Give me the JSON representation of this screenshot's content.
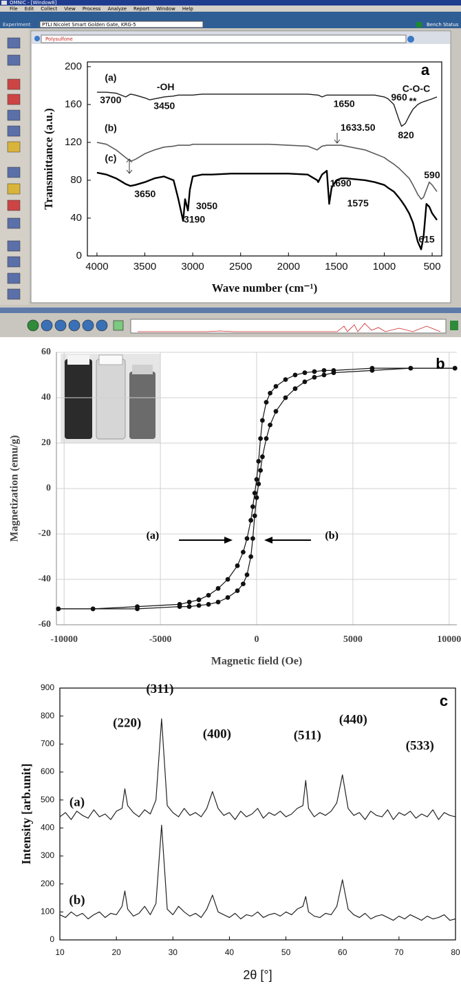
{
  "window": {
    "title": "OMNIC - [Window8]",
    "menu": [
      "File",
      "Edit",
      "Collect",
      "View",
      "Process",
      "Analyze",
      "Report",
      "Window",
      "Help"
    ],
    "experiment_label": "Experiment",
    "experiment": "PTLI Nicolet Smart Golden Gate, KRG-5",
    "bench_status": "Bench Status",
    "spectrum_title": "Polysulfone"
  },
  "chart_data": [
    {
      "type": "line",
      "label": "a",
      "xlabel": "Wave number (cm⁻¹)",
      "ylabel": "Transmittance (a.u.)",
      "xlim": [
        4100,
        400
      ],
      "ylim": [
        0,
        205
      ],
      "xticks": [
        4000,
        3500,
        3000,
        2500,
        2000,
        1500,
        1000,
        500
      ],
      "yticks": [
        0,
        40,
        80,
        120,
        160,
        200
      ],
      "grid": false,
      "x": [
        4000,
        3900,
        3800,
        3700,
        3650,
        3600,
        3500,
        3450,
        3400,
        3300,
        3200,
        3150,
        3100,
        3080,
        3050,
        3030,
        3000,
        2900,
        2800,
        2600,
        2400,
        2200,
        2000,
        1800,
        1700,
        1690,
        1650,
        1600,
        1575,
        1550,
        1500,
        1450,
        1400,
        1300,
        1200,
        1100,
        1000,
        960,
        900,
        850,
        820,
        780,
        740,
        700,
        650,
        615,
        590,
        560,
        530,
        500,
        450
      ],
      "series": [
        {
          "name": "(a)",
          "color": "#1a1a1a",
          "values": [
            173,
            173,
            172,
            168,
            171,
            170,
            167,
            165,
            166,
            168,
            169,
            170,
            170,
            170,
            170,
            170,
            170,
            171,
            171,
            171,
            171,
            171,
            171,
            171,
            170,
            170,
            168,
            170,
            170,
            170,
            170,
            170,
            170,
            170,
            170,
            170,
            168,
            166,
            160,
            145,
            137,
            140,
            148,
            155,
            160,
            162,
            163,
            164,
            165,
            166,
            168
          ]
        },
        {
          "name": "(b)",
          "color": "#5a5a5a",
          "values": [
            120,
            118,
            112,
            104,
            100,
            102,
            108,
            110,
            112,
            115,
            116,
            117,
            117,
            117,
            117,
            117,
            118,
            118,
            118,
            118,
            118,
            118,
            117,
            116,
            112,
            113,
            116,
            117,
            117,
            117,
            117,
            117,
            116,
            114,
            112,
            108,
            104,
            101,
            97,
            93,
            90,
            86,
            82,
            75,
            65,
            60,
            62,
            70,
            78,
            75,
            68
          ]
        },
        {
          "name": "(c)",
          "color": "#000000",
          "values": [
            88,
            86,
            82,
            76,
            74,
            75,
            78,
            80,
            82,
            84,
            80,
            60,
            37,
            60,
            48,
            70,
            84,
            86,
            86,
            87,
            87,
            87,
            87,
            86,
            80,
            78,
            86,
            90,
            55,
            72,
            80,
            82,
            82,
            81,
            80,
            78,
            75,
            72,
            68,
            62,
            58,
            52,
            45,
            35,
            15,
            7,
            20,
            55,
            52,
            45,
            38
          ]
        }
      ],
      "annotations": [
        {
          "text": "-OH",
          "x": 3283,
          "y": 178
        },
        {
          "text": "3700",
          "x": 3857,
          "y": 164
        },
        {
          "text": "3450",
          "x": 3297,
          "y": 158
        },
        {
          "text": "1650",
          "x": 1419,
          "y": 160
        },
        {
          "text": "960",
          "x": 845,
          "y": 167
        },
        {
          "text": "C-O-C",
          "x": 666,
          "y": 176
        },
        {
          "text": "**",
          "x": 702,
          "y": 163
        },
        {
          "text": "820",
          "x": 773,
          "y": 127
        },
        {
          "text": "1633.50",
          "x": 1275,
          "y": 135
        },
        {
          "text": "590",
          "x": 501,
          "y": 85
        },
        {
          "text": "3650",
          "x": 3498,
          "y": 65
        },
        {
          "text": "3190",
          "x": 2982,
          "y": 38
        },
        {
          "text": "3050",
          "x": 2853,
          "y": 52
        },
        {
          "text": "1690",
          "x": 1455,
          "y": 76
        },
        {
          "text": "1575",
          "x": 1275,
          "y": 55
        },
        {
          "text": "615",
          "x": 558,
          "y": 17
        }
      ]
    },
    {
      "type": "line",
      "markers": true,
      "label": "b",
      "xlabel": "Magnetic field (Oe)",
      "ylabel": "Magnetization (emu/g)",
      "xlim": [
        -10400,
        10400
      ],
      "ylim": [
        -60,
        60
      ],
      "xticks": [
        -10000,
        -5000,
        0,
        5000,
        10000
      ],
      "yticks": [
        -60,
        -40,
        -20,
        0,
        20,
        40,
        60
      ],
      "grid": true,
      "x": [
        -10300,
        -8500,
        -6200,
        -4000,
        -3500,
        -3000,
        -2500,
        -2000,
        -1500,
        -1000,
        -700,
        -500,
        -300,
        -200,
        -100,
        0,
        100,
        200,
        300,
        500,
        700,
        1000,
        1500,
        2000,
        2500,
        3000,
        3500,
        4000,
        6000,
        8000,
        10300
      ],
      "series": [
        {
          "color": "#111111",
          "values": [
            -53,
            -53,
            -52,
            -51,
            -50,
            -49,
            -47,
            -44,
            -40,
            -34,
            -28,
            -22,
            -14,
            -8,
            -2,
            4,
            12,
            22,
            30,
            38,
            42,
            45,
            48,
            50,
            51,
            51.5,
            52,
            52,
            53,
            53,
            53
          ]
        },
        {
          "color": "#111111",
          "values": [
            -53,
            -53,
            -53,
            -52,
            -52,
            -51.5,
            -51,
            -50,
            -48,
            -45,
            -42,
            -38,
            -30,
            -22,
            -12,
            -4,
            2,
            8,
            14,
            22,
            28,
            34,
            40,
            44,
            47,
            49,
            50,
            51,
            52,
            53,
            53
          ]
        }
      ],
      "annotations": [
        {
          "text": "(a)",
          "x": -5400,
          "y": -21
        },
        {
          "text": "(b)",
          "x": 3900,
          "y": -21
        }
      ]
    },
    {
      "type": "line",
      "label": "c",
      "xlabel": "2θ [°]",
      "ylabel": "Intensity [arb.unit]",
      "xlim": [
        10,
        80
      ],
      "ylim": [
        0,
        900
      ],
      "xticks": [
        10,
        20,
        30,
        40,
        50,
        60,
        70,
        80
      ],
      "yticks": [
        0,
        100,
        200,
        300,
        400,
        500,
        600,
        700,
        800,
        900
      ],
      "grid": false,
      "x": [
        10,
        11,
        12,
        13,
        14,
        15,
        16,
        17,
        18,
        19,
        20,
        21,
        21.5,
        22,
        23,
        24,
        25,
        26,
        27,
        28,
        29,
        30,
        31,
        32,
        33,
        34,
        35,
        36,
        37,
        38,
        39,
        40,
        41,
        42,
        43,
        44,
        45,
        46,
        47,
        48,
        49,
        50,
        51,
        52,
        53,
        53.5,
        54,
        55,
        56,
        57,
        58,
        59,
        60,
        61,
        62,
        63,
        64,
        65,
        66,
        67,
        68,
        69,
        70,
        71,
        72,
        73,
        74,
        75,
        76,
        77,
        78,
        79,
        80
      ],
      "series": [
        {
          "name": "(a)",
          "color": "#222222",
          "values": [
            440,
            455,
            430,
            460,
            445,
            435,
            465,
            440,
            450,
            430,
            460,
            470,
            540,
            480,
            455,
            440,
            465,
            450,
            500,
            790,
            480,
            455,
            440,
            470,
            445,
            455,
            440,
            470,
            530,
            470,
            445,
            455,
            430,
            460,
            440,
            450,
            470,
            435,
            455,
            445,
            460,
            440,
            450,
            470,
            480,
            570,
            470,
            440,
            455,
            445,
            460,
            490,
            590,
            470,
            445,
            455,
            430,
            460,
            445,
            440,
            465,
            430,
            455,
            445,
            460,
            435,
            450,
            440,
            465,
            430,
            455,
            445,
            440
          ]
        },
        {
          "name": "(b)",
          "color": "#222222",
          "values": [
            90,
            80,
            100,
            85,
            95,
            75,
            90,
            100,
            80,
            95,
            90,
            120,
            175,
            110,
            85,
            95,
            120,
            90,
            130,
            410,
            110,
            90,
            120,
            100,
            85,
            95,
            80,
            110,
            160,
            100,
            90,
            80,
            95,
            75,
            90,
            85,
            100,
            80,
            90,
            95,
            85,
            100,
            90,
            110,
            120,
            155,
            100,
            85,
            80,
            95,
            90,
            120,
            215,
            110,
            90,
            80,
            95,
            75,
            85,
            90,
            80,
            70,
            85,
            75,
            90,
            80,
            70,
            85,
            75,
            80,
            90,
            70,
            75
          ]
        }
      ],
      "annotations": [
        {
          "text": "(220)",
          "x": 21.9,
          "y": 772
        },
        {
          "text": "(311)",
          "x": 27.7,
          "y": 893
        },
        {
          "text": "(400)",
          "x": 37.8,
          "y": 733
        },
        {
          "text": "(511)",
          "x": 53.8,
          "y": 728
        },
        {
          "text": "(440)",
          "x": 61.9,
          "y": 784
        },
        {
          "text": "(533)",
          "x": 73.7,
          "y": 691
        }
      ]
    }
  ]
}
